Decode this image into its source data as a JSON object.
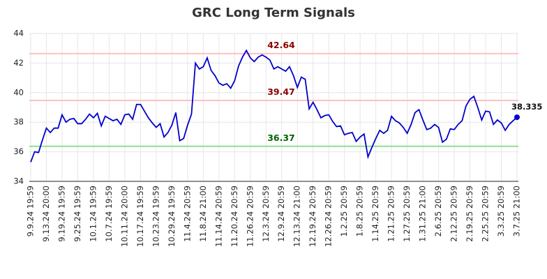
{
  "chart_data": {
    "type": "line",
    "title": "GRC Long Term Signals",
    "categories": [
      "9.9.24 19:59",
      null,
      null,
      null,
      "9.13.24 20:00",
      null,
      null,
      null,
      "9.19.24 19:59",
      null,
      null,
      null,
      "9.25.24 19:59",
      null,
      null,
      null,
      "10.1.24 19:59",
      null,
      null,
      null,
      "10.7.24 19:59",
      null,
      null,
      null,
      "10.11.24 20:00",
      null,
      null,
      null,
      "10.17.24 19:59",
      null,
      null,
      null,
      "10.23.24 19:59",
      null,
      null,
      null,
      "10.29.24 19:59",
      null,
      null,
      null,
      "11.4.24 20:59",
      null,
      null,
      null,
      "11.8.24 21:00",
      null,
      null,
      null,
      "11.14.24 20:59",
      null,
      null,
      null,
      "11.20.24 20:59",
      null,
      null,
      null,
      "11.26.24 20:59",
      null,
      null,
      null,
      "12.3.24 20:59",
      null,
      null,
      null,
      "12.9.24 20:59",
      null,
      null,
      null,
      "12.13.24 21:00",
      null,
      null,
      null,
      "12.19.24 20:59",
      null,
      null,
      null,
      "12.26.24 20:59",
      null,
      null,
      null,
      "1.2.25 20:59",
      null,
      null,
      null,
      "1.8.25 20:59",
      null,
      null,
      null,
      "1.14.25 20:59",
      null,
      null,
      null,
      "1.21.25 20:59",
      null,
      null,
      null,
      "1.27.25 20:59",
      null,
      null,
      null,
      "1.31.25 21:00",
      null,
      null,
      null,
      "2.6.25 20:59",
      null,
      null,
      null,
      "2.12.25 20:59",
      null,
      null,
      null,
      "2.19.25 20:59",
      null,
      null,
      null,
      "2.25.25 20:59",
      null,
      null,
      null,
      "3.3.25 20:59",
      null,
      null,
      null,
      "3.7.25 21:00"
    ],
    "values": [
      35.3,
      36.0,
      35.95,
      36.8,
      37.6,
      37.3,
      37.6,
      37.6,
      38.5,
      38.0,
      38.2,
      38.25,
      37.9,
      37.9,
      38.2,
      38.55,
      38.3,
      38.6,
      37.75,
      38.4,
      38.25,
      38.1,
      38.2,
      37.85,
      38.5,
      38.55,
      38.2,
      39.2,
      39.2,
      38.75,
      38.3,
      37.95,
      37.65,
      37.9,
      37.0,
      37.3,
      37.8,
      38.65,
      36.75,
      36.9,
      37.8,
      38.55,
      42.0,
      41.6,
      41.75,
      42.35,
      41.5,
      41.15,
      40.65,
      40.5,
      40.6,
      40.3,
      40.8,
      41.8,
      42.4,
      42.85,
      42.35,
      42.1,
      42.4,
      42.55,
      42.4,
      42.2,
      41.6,
      41.75,
      41.6,
      41.45,
      41.75,
      41.15,
      40.35,
      41.05,
      40.9,
      38.9,
      39.35,
      38.85,
      38.3,
      38.45,
      38.5,
      38.05,
      37.7,
      37.75,
      37.15,
      37.25,
      37.3,
      36.7,
      37.0,
      37.2,
      35.65,
      36.3,
      36.9,
      37.45,
      37.25,
      37.45,
      38.4,
      38.1,
      37.95,
      37.65,
      37.25,
      37.85,
      38.65,
      38.85,
      38.15,
      37.5,
      37.6,
      37.85,
      37.65,
      36.65,
      36.85,
      37.55,
      37.5,
      37.85,
      38.1,
      39.1,
      39.55,
      39.75,
      39.0,
      38.15,
      38.75,
      38.7,
      37.85,
      38.15,
      37.95,
      37.45,
      37.85,
      38.1,
      38.335
    ],
    "color": "#0000cc",
    "ylim": [
      34,
      44
    ],
    "yticks": [
      34,
      36,
      38,
      40,
      42,
      44
    ],
    "grid": true,
    "hlines": [
      {
        "value": 42.64,
        "color": "#ffc0c0",
        "label_color": "#8b0000"
      },
      {
        "value": 39.47,
        "color": "#ffc0c0",
        "label_color": "#8b0000"
      },
      {
        "value": 36.37,
        "color": "#90e090",
        "label_color": "#006400"
      }
    ]
  }
}
